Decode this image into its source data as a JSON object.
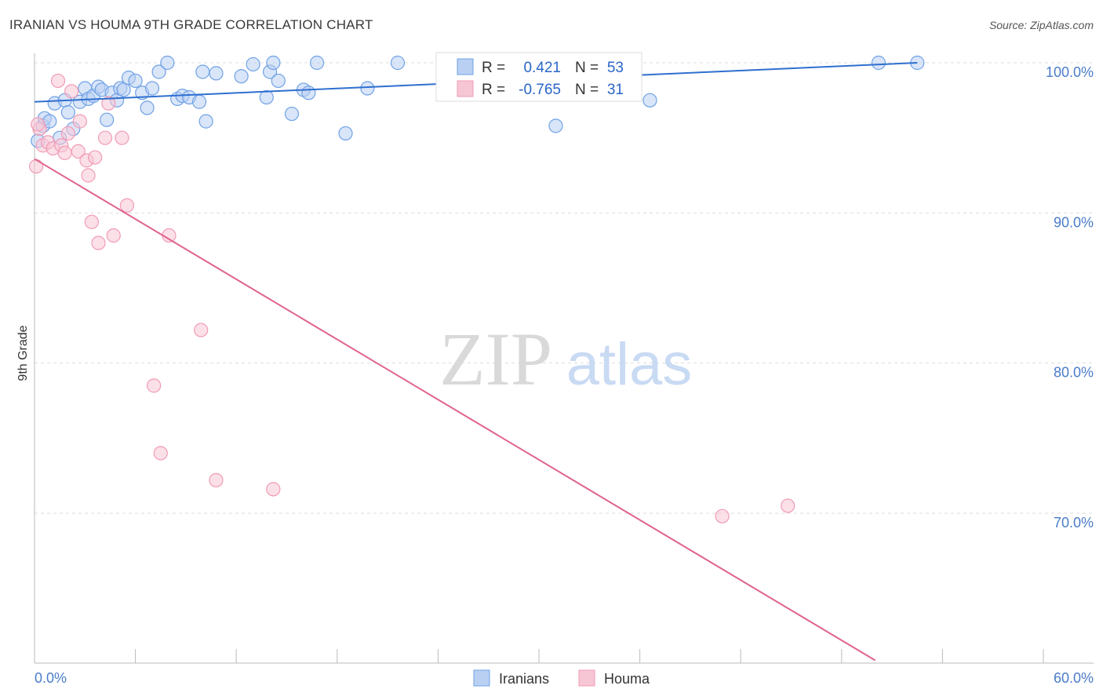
{
  "header": {
    "title": "IRANIAN VS HOUMA 9TH GRADE CORRELATION CHART",
    "source": "Source: ZipAtlas.com"
  },
  "watermark": {
    "zip": "ZIP",
    "atlas": "atlas"
  },
  "legend": {
    "r_label": "R =",
    "n_label": "N =",
    "items": [
      {
        "r": "0.421",
        "n": "53",
        "color": "#6fa2e6"
      },
      {
        "r": "-0.765",
        "n": "31",
        "color": "#f19bb6"
      }
    ]
  },
  "colors": {
    "blue": "#2f6fcf",
    "blue_fill": "#b9d0f3",
    "pink": "#e0638e",
    "pink_fill": "#f7c6d5",
    "grid": "#dddddd",
    "axis": "#bbbbbb"
  },
  "chart_data": {
    "type": "scatter",
    "title": "IRANIAN VS HOUMA 9TH GRADE CORRELATION CHART",
    "xlabel": "",
    "ylabel": "9th Grade",
    "xlim": [
      0,
      60
    ],
    "ylim": [
      60,
      101.5
    ],
    "x_tick_labels": [
      "0.0%",
      "60.0%"
    ],
    "y_ticks": [
      70,
      80,
      90,
      100
    ],
    "y_tick_labels": [
      "70.0%",
      "80.0%",
      "90.0%",
      "100.0%"
    ],
    "grid": true,
    "legend_position": "top-center",
    "series": [
      {
        "name": "Iranians",
        "color": "#6fa2e6",
        "trend": {
          "x": [
            0,
            52.5
          ],
          "y": [
            97.4,
            100.0
          ]
        },
        "points": [
          [
            0.2,
            94.8
          ],
          [
            0.5,
            95.8
          ],
          [
            0.6,
            96.3
          ],
          [
            0.9,
            96.1
          ],
          [
            1.2,
            97.3
          ],
          [
            1.5,
            95.0
          ],
          [
            1.8,
            97.5
          ],
          [
            2.0,
            96.7
          ],
          [
            2.3,
            95.6
          ],
          [
            2.7,
            97.4
          ],
          [
            3.0,
            98.3
          ],
          [
            3.2,
            97.6
          ],
          [
            3.5,
            97.8
          ],
          [
            3.8,
            98.4
          ],
          [
            4.0,
            98.2
          ],
          [
            4.3,
            96.2
          ],
          [
            4.6,
            98.0
          ],
          [
            4.9,
            97.5
          ],
          [
            5.1,
            98.3
          ],
          [
            5.3,
            98.2
          ],
          [
            5.6,
            99.0
          ],
          [
            6.0,
            98.8
          ],
          [
            6.4,
            98.0
          ],
          [
            6.7,
            97.0
          ],
          [
            7.0,
            98.3
          ],
          [
            7.4,
            99.4
          ],
          [
            7.9,
            100.0
          ],
          [
            8.5,
            97.6
          ],
          [
            8.8,
            97.8
          ],
          [
            9.2,
            97.7
          ],
          [
            9.8,
            97.4
          ],
          [
            10.0,
            99.4
          ],
          [
            10.2,
            96.1
          ],
          [
            10.8,
            99.3
          ],
          [
            12.3,
            99.1
          ],
          [
            13.0,
            99.9
          ],
          [
            13.8,
            97.7
          ],
          [
            14.0,
            99.4
          ],
          [
            14.2,
            100.0
          ],
          [
            14.5,
            98.8
          ],
          [
            15.3,
            96.6
          ],
          [
            16.0,
            98.2
          ],
          [
            16.3,
            98.0
          ],
          [
            16.8,
            100.0
          ],
          [
            18.5,
            95.3
          ],
          [
            19.8,
            98.3
          ],
          [
            21.6,
            100.0
          ],
          [
            25.6,
            99.4
          ],
          [
            31.0,
            95.8
          ],
          [
            35.6,
            100.0
          ],
          [
            36.6,
            97.5
          ],
          [
            50.2,
            100.0
          ],
          [
            52.5,
            100.0
          ]
        ]
      },
      {
        "name": "Houma",
        "color": "#f19bb6",
        "trend": {
          "x": [
            0,
            50.0
          ],
          "y": [
            93.6,
            60.2
          ]
        },
        "points": [
          [
            0.1,
            93.1
          ],
          [
            0.3,
            95.6
          ],
          [
            0.5,
            94.5
          ],
          [
            0.8,
            94.7
          ],
          [
            1.1,
            94.3
          ],
          [
            1.4,
            98.8
          ],
          [
            1.6,
            94.5
          ],
          [
            1.8,
            94.0
          ],
          [
            2.0,
            95.3
          ],
          [
            2.2,
            98.1
          ],
          [
            2.6,
            94.1
          ],
          [
            2.7,
            96.1
          ],
          [
            3.1,
            93.5
          ],
          [
            3.2,
            92.5
          ],
          [
            3.4,
            89.4
          ],
          [
            3.6,
            93.7
          ],
          [
            3.8,
            88.0
          ],
          [
            4.2,
            95.0
          ],
          [
            4.4,
            97.3
          ],
          [
            4.7,
            88.5
          ],
          [
            5.2,
            95.0
          ],
          [
            5.5,
            90.5
          ],
          [
            7.1,
            78.5
          ],
          [
            7.5,
            74.0
          ],
          [
            8.0,
            88.5
          ],
          [
            9.9,
            82.2
          ],
          [
            10.8,
            72.2
          ],
          [
            14.2,
            71.6
          ],
          [
            40.9,
            69.8
          ],
          [
            44.8,
            70.5
          ],
          [
            0.2,
            95.9
          ]
        ]
      }
    ]
  }
}
